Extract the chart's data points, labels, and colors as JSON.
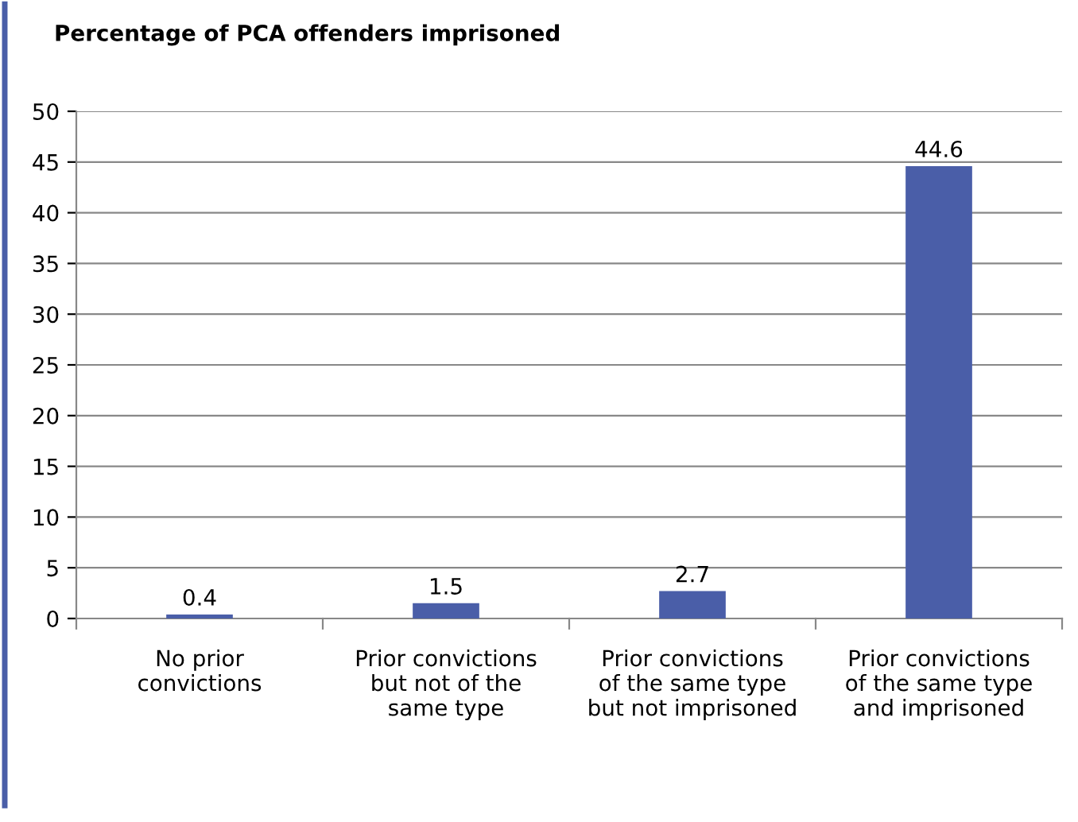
{
  "chart_data": {
    "type": "bar",
    "title": "Percentage of PCA offenders imprisoned",
    "categories": [
      "No prior\nconvictions",
      "Prior convictions\nbut not of the\nsame type",
      "Prior convictions\nof the same type\nbut not imprisoned",
      "Prior convictions\nof the same type\nand imprisoned"
    ],
    "values": [
      0.4,
      1.5,
      2.7,
      44.6
    ],
    "color": "#4a5ea8",
    "ylim": [
      0,
      50
    ],
    "yticks": [
      0,
      5,
      10,
      15,
      20,
      25,
      30,
      35,
      40,
      45,
      50
    ],
    "grid": "y",
    "data_labels": true
  }
}
